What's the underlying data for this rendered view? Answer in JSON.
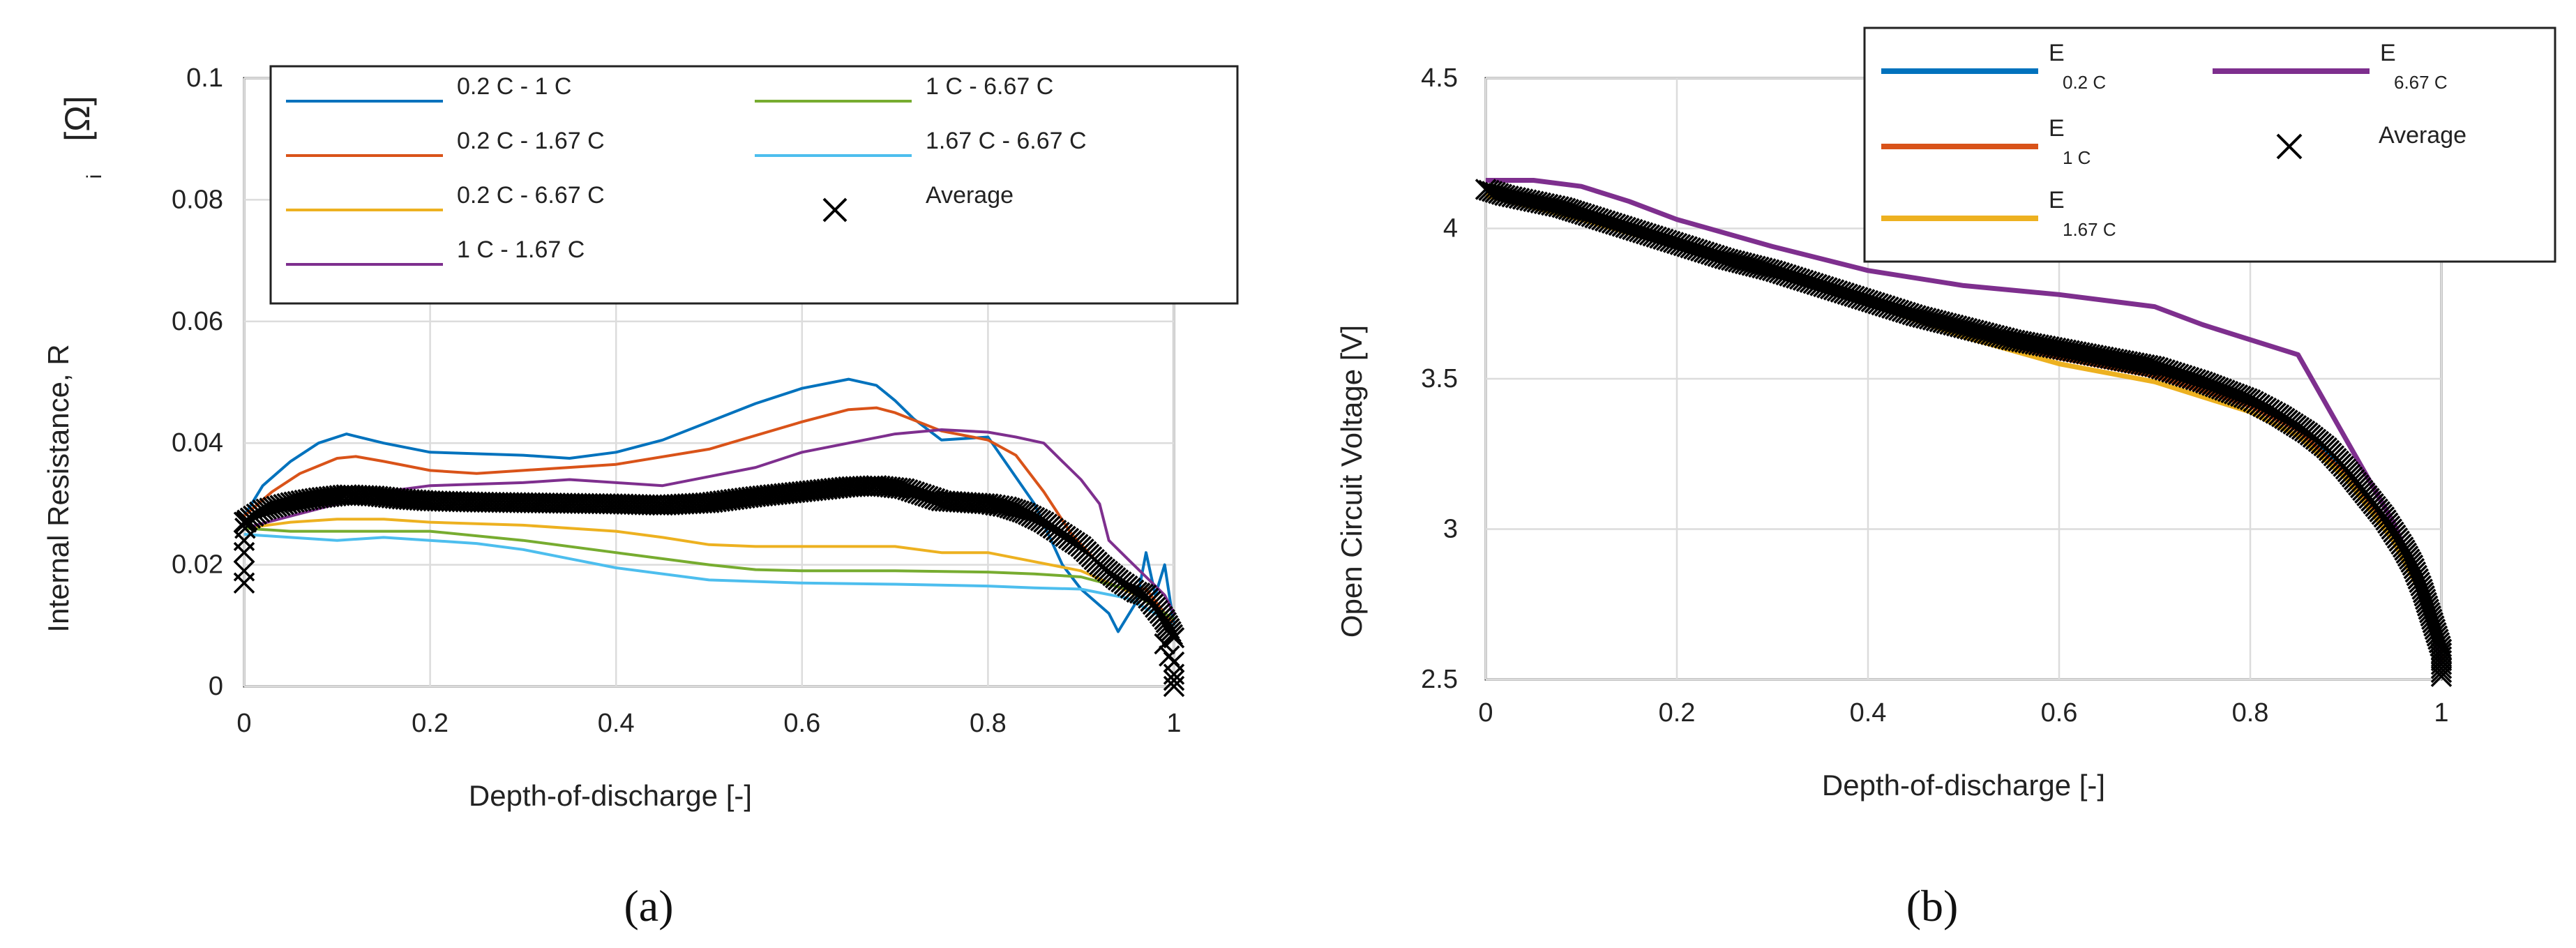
{
  "chart_data": [
    {
      "type": "line",
      "panel_label": "(a)",
      "xlabel": "Depth-of-discharge [-]",
      "ylabel": "Internal Resistance, R",
      "ylabel_sub": "i",
      "ylabel_unit": "[Ω]",
      "xlim": [
        0,
        1
      ],
      "ylim": [
        0,
        0.1
      ],
      "xticks": [
        0,
        0.2,
        0.4,
        0.6,
        0.8,
        1
      ],
      "xtick_labels": [
        "0",
        "0.2",
        "0.4",
        "0.6",
        "0.8",
        "1"
      ],
      "yticks": [
        0,
        0.02,
        0.04,
        0.06,
        0.08,
        0.1
      ],
      "ytick_labels": [
        "0",
        "0.02",
        "0.04",
        "0.06",
        "0.08",
        "0.1"
      ],
      "grid": true,
      "legend_position": "top",
      "series": [
        {
          "name": "0.2 C - 1 C",
          "color": "#0072BD",
          "x": [
            0,
            0.02,
            0.05,
            0.08,
            0.11,
            0.15,
            0.2,
            0.3,
            0.35,
            0.4,
            0.45,
            0.5,
            0.55,
            0.6,
            0.65,
            0.68,
            0.7,
            0.72,
            0.75,
            0.8,
            0.85,
            0.88,
            0.9,
            0.93,
            0.94,
            0.96,
            0.97,
            0.98,
            0.99,
            1.0
          ],
          "y": [
            0.028,
            0.033,
            0.037,
            0.04,
            0.0415,
            0.04,
            0.0385,
            0.038,
            0.0375,
            0.0385,
            0.0405,
            0.0435,
            0.0465,
            0.049,
            0.0505,
            0.0495,
            0.047,
            0.044,
            0.0405,
            0.041,
            0.03,
            0.02,
            0.016,
            0.012,
            0.009,
            0.014,
            0.022,
            0.015,
            0.02,
            0.01
          ]
        },
        {
          "name": "0.2 C - 1.67 C",
          "color": "#D95319",
          "x": [
            0,
            0.03,
            0.06,
            0.1,
            0.12,
            0.15,
            0.2,
            0.25,
            0.3,
            0.4,
            0.5,
            0.6,
            0.65,
            0.68,
            0.7,
            0.75,
            0.8,
            0.83,
            0.86,
            0.89,
            0.92,
            0.95,
            0.97,
            0.99,
            1.0
          ],
          "y": [
            0.028,
            0.032,
            0.035,
            0.0375,
            0.0378,
            0.037,
            0.0355,
            0.035,
            0.0355,
            0.0365,
            0.039,
            0.0435,
            0.0455,
            0.0458,
            0.045,
            0.042,
            0.0405,
            0.038,
            0.032,
            0.025,
            0.02,
            0.016,
            0.016,
            0.012,
            0.01
          ]
        },
        {
          "name": "0.2 C - 6.67 C",
          "color": "#EDB120",
          "x": [
            0,
            0.05,
            0.1,
            0.15,
            0.2,
            0.3,
            0.4,
            0.45,
            0.5,
            0.55,
            0.6,
            0.7,
            0.75,
            0.8,
            0.85,
            0.9,
            0.93,
            0.96,
            0.98,
            1.0
          ],
          "y": [
            0.026,
            0.027,
            0.0275,
            0.0275,
            0.027,
            0.0265,
            0.0255,
            0.0245,
            0.0233,
            0.023,
            0.023,
            0.023,
            0.022,
            0.022,
            0.0205,
            0.019,
            0.017,
            0.015,
            0.013,
            0.011
          ]
        },
        {
          "name": "1 C - 1.67 C",
          "color": "#7E2F8E",
          "x": [
            0,
            0.05,
            0.1,
            0.15,
            0.2,
            0.3,
            0.35,
            0.4,
            0.45,
            0.5,
            0.55,
            0.6,
            0.65,
            0.7,
            0.75,
            0.8,
            0.83,
            0.86,
            0.88,
            0.9,
            0.92,
            0.93,
            0.95,
            0.97,
            0.99,
            1.0
          ],
          "y": [
            0.026,
            0.028,
            0.03,
            0.032,
            0.033,
            0.0335,
            0.034,
            0.0335,
            0.033,
            0.0345,
            0.036,
            0.0385,
            0.04,
            0.0415,
            0.0422,
            0.0418,
            0.041,
            0.04,
            0.037,
            0.034,
            0.03,
            0.024,
            0.021,
            0.018,
            0.015,
            0.012
          ]
        },
        {
          "name": "1 C - 6.67 C",
          "color": "#77AC30",
          "x": [
            0,
            0.05,
            0.1,
            0.15,
            0.2,
            0.3,
            0.4,
            0.5,
            0.55,
            0.6,
            0.7,
            0.8,
            0.85,
            0.9,
            0.95,
            0.98,
            1.0
          ],
          "y": [
            0.026,
            0.0255,
            0.0255,
            0.0255,
            0.0255,
            0.024,
            0.022,
            0.02,
            0.0192,
            0.019,
            0.019,
            0.0188,
            0.0185,
            0.018,
            0.016,
            0.013,
            0.011
          ]
        },
        {
          "name": "1.67 C - 6.67 C",
          "color": "#4DBEEE",
          "x": [
            0,
            0.05,
            0.1,
            0.15,
            0.2,
            0.25,
            0.3,
            0.35,
            0.4,
            0.5,
            0.6,
            0.7,
            0.8,
            0.85,
            0.9,
            0.95,
            0.98,
            1.0
          ],
          "y": [
            0.025,
            0.0245,
            0.024,
            0.0245,
            0.024,
            0.0235,
            0.0225,
            0.021,
            0.0195,
            0.0175,
            0.017,
            0.0168,
            0.0165,
            0.0162,
            0.016,
            0.0145,
            0.012,
            0.01
          ]
        },
        {
          "name": "Average",
          "color": "#000000",
          "marker": "x",
          "x": [
            0,
            0.02,
            0.05,
            0.08,
            0.11,
            0.14,
            0.17,
            0.2,
            0.25,
            0.3,
            0.35,
            0.4,
            0.45,
            0.5,
            0.55,
            0.6,
            0.65,
            0.68,
            0.71,
            0.75,
            0.8,
            0.82,
            0.84,
            0.86,
            0.88,
            0.9,
            0.92,
            0.94,
            0.96,
            0.97,
            0.98,
            0.99,
            1.0
          ],
          "y": [
            0.027,
            0.029,
            0.0302,
            0.031,
            0.0315,
            0.0313,
            0.0308,
            0.0305,
            0.0303,
            0.0302,
            0.0301,
            0.03,
            0.0298,
            0.0302,
            0.0312,
            0.032,
            0.0328,
            0.033,
            0.0325,
            0.0305,
            0.03,
            0.0295,
            0.0285,
            0.027,
            0.025,
            0.023,
            0.02,
            0.0175,
            0.0155,
            0.015,
            0.013,
            0.011,
            0.008
          ]
        }
      ],
      "extra_markers": {
        "x": [
          0,
          0,
          0,
          0,
          0.001,
          0.002,
          0.99,
          0.995,
          1.0,
          1.0,
          1.0,
          1.0
        ],
        "y": [
          0.017,
          0.019,
          0.022,
          0.024,
          0.026,
          0.027,
          0.007,
          0.005,
          0.004,
          0.002,
          0.001,
          0.0
        ]
      }
    },
    {
      "type": "line",
      "panel_label": "(b)",
      "xlabel": "Depth-of-discharge [-]",
      "ylabel": "Open Circuit Voltage [V]",
      "xlim": [
        0,
        1
      ],
      "ylim": [
        2.5,
        4.5
      ],
      "xticks": [
        0,
        0.2,
        0.4,
        0.6,
        0.8,
        1
      ],
      "xtick_labels": [
        "0",
        "0.2",
        "0.4",
        "0.6",
        "0.8",
        "1"
      ],
      "yticks": [
        2.5,
        3,
        3.5,
        4,
        4.5
      ],
      "ytick_labels": [
        "2.5",
        "3",
        "3.5",
        "4",
        "4.5"
      ],
      "grid": true,
      "legend_position": "top-right",
      "series": [
        {
          "name": "E",
          "sub": "0.2 C",
          "color": "#0072BD",
          "x": [
            0,
            0.05,
            0.1,
            0.2,
            0.3,
            0.4,
            0.5,
            0.6,
            0.7,
            0.8,
            0.85,
            0.9,
            0.95,
            0.98,
            1.0
          ],
          "y": [
            4.13,
            4.09,
            4.05,
            3.95,
            3.86,
            3.76,
            3.66,
            3.58,
            3.52,
            3.42,
            3.34,
            3.19,
            2.98,
            2.8,
            2.6
          ]
        },
        {
          "name": "E",
          "sub": "1 C",
          "color": "#D95319",
          "x": [
            0,
            0.05,
            0.1,
            0.2,
            0.3,
            0.4,
            0.5,
            0.6,
            0.7,
            0.8,
            0.85,
            0.9,
            0.95,
            0.98,
            1.0
          ],
          "y": [
            4.12,
            4.08,
            4.04,
            3.95,
            3.86,
            3.76,
            3.65,
            3.57,
            3.51,
            3.41,
            3.33,
            3.18,
            2.97,
            2.78,
            2.57
          ]
        },
        {
          "name": "E",
          "sub": "1.67 C",
          "color": "#EDB120",
          "x": [
            0,
            0.05,
            0.1,
            0.2,
            0.3,
            0.4,
            0.5,
            0.6,
            0.7,
            0.8,
            0.85,
            0.9,
            0.95,
            0.98,
            1.0
          ],
          "y": [
            4.11,
            4.07,
            4.03,
            3.94,
            3.85,
            3.75,
            3.64,
            3.55,
            3.49,
            3.39,
            3.31,
            3.17,
            2.96,
            2.78,
            2.56
          ]
        },
        {
          "name": "E",
          "sub": "6.67 C",
          "color": "#7E2F8E",
          "x": [
            0,
            0.05,
            0.1,
            0.15,
            0.2,
            0.3,
            0.4,
            0.5,
            0.6,
            0.7,
            0.75,
            0.8,
            0.85,
            0.9,
            0.95,
            0.98,
            1.0
          ],
          "y": [
            4.16,
            4.16,
            4.14,
            4.09,
            4.03,
            3.94,
            3.86,
            3.81,
            3.78,
            3.74,
            3.68,
            3.63,
            3.58,
            3.3,
            3.02,
            2.8,
            2.55
          ]
        },
        {
          "name": "Average",
          "color": "#000000",
          "marker": "x",
          "x": [
            0,
            0.02,
            0.05,
            0.08,
            0.1,
            0.15,
            0.2,
            0.25,
            0.3,
            0.35,
            0.4,
            0.45,
            0.5,
            0.55,
            0.6,
            0.65,
            0.7,
            0.75,
            0.8,
            0.83,
            0.86,
            0.88,
            0.9,
            0.92,
            0.94,
            0.96,
            0.97,
            0.98,
            0.99,
            1.0,
            1.0,
            1.0
          ],
          "y": [
            4.13,
            4.11,
            4.09,
            4.07,
            4.05,
            4.0,
            3.95,
            3.9,
            3.86,
            3.81,
            3.76,
            3.71,
            3.67,
            3.63,
            3.6,
            3.57,
            3.54,
            3.49,
            3.43,
            3.38,
            3.32,
            3.27,
            3.2,
            3.12,
            3.04,
            2.94,
            2.88,
            2.8,
            2.7,
            2.6,
            2.55,
            2.51
          ]
        }
      ]
    }
  ],
  "captions": {
    "a": "(a)",
    "b": "(b)"
  }
}
